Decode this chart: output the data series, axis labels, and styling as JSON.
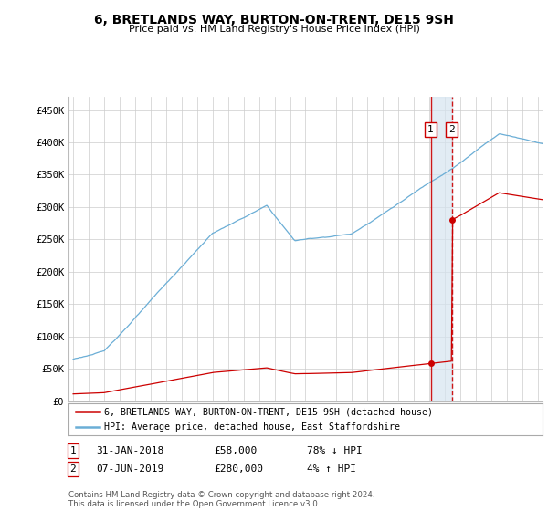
{
  "title": "6, BRETLANDS WAY, BURTON-ON-TRENT, DE15 9SH",
  "subtitle": "Price paid vs. HM Land Registry's House Price Index (HPI)",
  "ylabel_ticks": [
    "£0",
    "£50K",
    "£100K",
    "£150K",
    "£200K",
    "£250K",
    "£300K",
    "£350K",
    "£400K",
    "£450K"
  ],
  "ytick_values": [
    0,
    50000,
    100000,
    150000,
    200000,
    250000,
    300000,
    350000,
    400000,
    450000
  ],
  "ylim": [
    0,
    470000
  ],
  "xlim_start": 1994.7,
  "xlim_end": 2025.3,
  "hpi_color": "#6BAED6",
  "price_color": "#CC0000",
  "vline1_color": "#CC0000",
  "vline2_color": "#CC0000",
  "highlight_box_color": "#D6E4F0",
  "transaction1_year": 2018.08,
  "transaction1_price": 58000,
  "transaction2_year": 2019.44,
  "transaction2_price": 280000,
  "legend_line1": "6, BRETLANDS WAY, BURTON-ON-TRENT, DE15 9SH (detached house)",
  "legend_line2": "HPI: Average price, detached house, East Staffordshire",
  "table_row1": [
    "1",
    "31-JAN-2018",
    "£58,000",
    "78% ↓ HPI"
  ],
  "table_row2": [
    "2",
    "07-JUN-2019",
    "£280,000",
    "4% ↑ HPI"
  ],
  "footnote": "Contains HM Land Registry data © Crown copyright and database right 2024.\nThis data is licensed under the Open Government Licence v3.0.",
  "background_color": "#FFFFFF",
  "grid_color": "#CCCCCC"
}
